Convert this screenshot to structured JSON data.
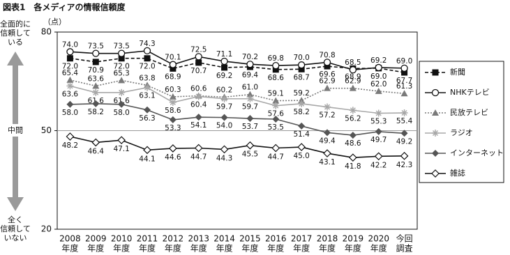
{
  "chart_data": {
    "type": "line",
    "title": "図表1　各メディアの情報信頼度",
    "y_unit": "（点）",
    "annotations": {
      "top": [
        "全面的に",
        "信頼して",
        "いる"
      ],
      "middle": "中間",
      "bottom": [
        "全く",
        "信頼して",
        "いない"
      ]
    },
    "categories": [
      [
        "2008",
        "年度"
      ],
      [
        "2009",
        "年度"
      ],
      [
        "2010",
        "年度"
      ],
      [
        "2011",
        "年度"
      ],
      [
        "2012",
        "年度"
      ],
      [
        "2013",
        "年度"
      ],
      [
        "2014",
        "年度"
      ],
      [
        "2015",
        "年度"
      ],
      [
        "2016",
        "年度"
      ],
      [
        "2017",
        "年度"
      ],
      [
        "2018",
        "年度"
      ],
      [
        "2019",
        "年度"
      ],
      [
        "2020",
        "年度"
      ],
      [
        "今回",
        "調査"
      ]
    ],
    "ylim": [
      20,
      80
    ],
    "yticks": [
      20,
      50,
      80
    ],
    "reference_line": 50,
    "series": [
      {
        "name": "新聞",
        "color": "#111111",
        "marker": "square",
        "line_style": "dashed",
        "values": [
          72.0,
          70.9,
          72.0,
          72.0,
          68.9,
          70.7,
          69.2,
          69.4,
          68.6,
          68.7,
          69.6,
          68.9,
          69.0,
          67.7
        ],
        "value_labels": [
          "72.0",
          "70.9",
          "72.0",
          "72.0",
          "68.9",
          "70.7",
          "69.2",
          "69.4",
          "68.6",
          "68.7",
          "69.6",
          "68.9",
          "69.0",
          "67.7"
        ]
      },
      {
        "name": "NHKテレビ",
        "color": "#111111",
        "marker": "circle",
        "line_style": "solid",
        "values": [
          74.0,
          73.5,
          73.5,
          74.3,
          70.1,
          72.5,
          71.1,
          70.2,
          69.8,
          70.0,
          70.8,
          68.5,
          69.2,
          69.0
        ],
        "value_labels": [
          "74.0",
          "73.5",
          "73.5",
          "74.3",
          "70.1",
          "72.5",
          "71.1",
          "70.2",
          "69.8",
          "70.0",
          "70.8",
          "68.5",
          "69.2",
          "69.0"
        ]
      },
      {
        "name": "民放テレビ",
        "color": "#7a7a7a",
        "marker": "triangle",
        "line_style": "dotted",
        "values": [
          65.4,
          63.6,
          65.3,
          63.8,
          60.3,
          60.6,
          60.2,
          61.0,
          59.1,
          59.2,
          62.9,
          62.9,
          62.0,
          61.3
        ],
        "value_labels": [
          "65.4",
          "63.6",
          "65.3",
          "63.8",
          "60.3",
          "60.6",
          "60.2",
          "61.0",
          "59.1",
          "59.2",
          "62.9",
          "62.9",
          "62.0",
          "61.3"
        ]
      },
      {
        "name": "ラジオ",
        "color": "#a8a8a8",
        "marker": "asterisk",
        "line_style": "solid",
        "values": [
          63.6,
          61.6,
          61.6,
          63.1,
          58.6,
          60.4,
          59.7,
          59.7,
          57.6,
          58.2,
          57.2,
          56.2,
          55.3,
          55.4
        ],
        "value_labels": [
          "63.6",
          "61.6",
          "61.6",
          "63.1",
          "58.6",
          "60.4",
          "59.7",
          "59.7",
          "57.6",
          "58.2",
          "57.2",
          "56.2",
          "55.3",
          "55.4"
        ]
      },
      {
        "name": "インターネット",
        "color": "#555555",
        "marker": "diamond",
        "line_style": "solid",
        "values": [
          58.0,
          58.2,
          58.0,
          56.3,
          53.3,
          54.1,
          54.0,
          53.7,
          53.5,
          51.4,
          49.4,
          48.6,
          49.7,
          49.2
        ],
        "value_labels": [
          "58.0",
          "58.2",
          "58.0",
          "56.3",
          "53.3",
          "54.1",
          "54.0",
          "53.7",
          "53.5",
          "51.4",
          "49.4",
          "48.6",
          "49.7",
          "49.2"
        ]
      },
      {
        "name": "雑誌",
        "color": "#111111",
        "marker": "open-diamond",
        "line_style": "solid",
        "values": [
          48.2,
          46.4,
          47.1,
          44.1,
          44.6,
          44.7,
          44.3,
          45.5,
          44.7,
          45.0,
          43.1,
          41.8,
          42.2,
          42.3
        ],
        "value_labels": [
          "48.2",
          "46.4",
          "47.1",
          "44.1",
          "44.6",
          "44.7",
          "44.3",
          "45.5",
          "44.7",
          "45.0",
          "43.1",
          "41.8",
          "42.2",
          "42.3"
        ]
      }
    ]
  }
}
